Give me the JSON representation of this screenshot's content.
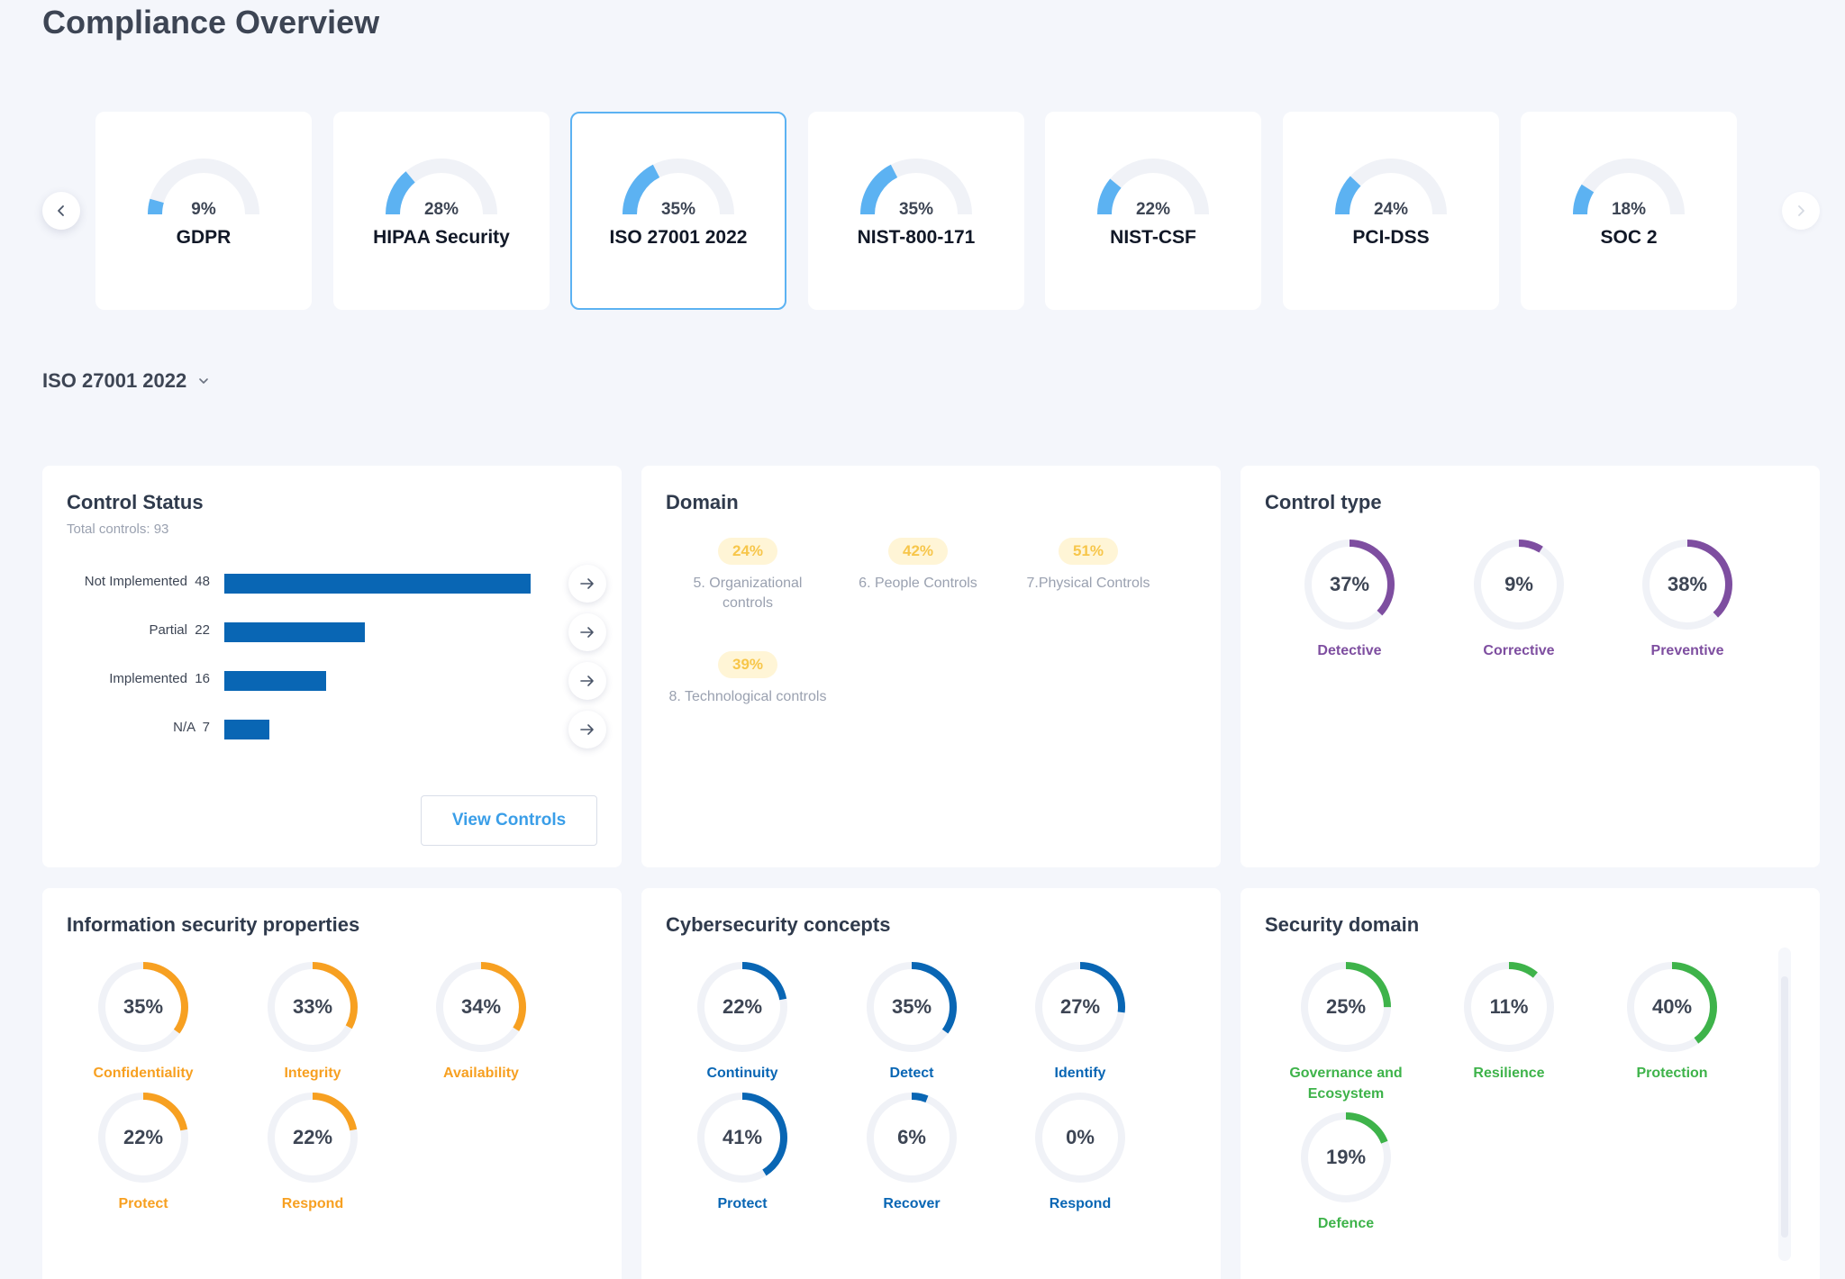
{
  "page": {
    "title": "Compliance Overview"
  },
  "frameworks": [
    {
      "name": "GDPR",
      "percent": 9,
      "percent_label": "9%"
    },
    {
      "name": "HIPAA Security",
      "percent": 28,
      "percent_label": "28%"
    },
    {
      "name": "ISO 27001 2022",
      "percent": 35,
      "percent_label": "35%",
      "selected": true
    },
    {
      "name": "NIST-800-171",
      "percent": 35,
      "percent_label": "35%"
    },
    {
      "name": "NIST-CSF",
      "percent": 22,
      "percent_label": "22%"
    },
    {
      "name": "PCI-DSS",
      "percent": 24,
      "percent_label": "24%"
    },
    {
      "name": "SOC 2",
      "percent": 18,
      "percent_label": "18%"
    }
  ],
  "carousel": {
    "prev_icon": "chevron-left-icon",
    "next_icon": "chevron-right-icon"
  },
  "selector": {
    "value": "ISO 27001 2022",
    "icon": "chevron-down-icon"
  },
  "control_status": {
    "title": "Control Status",
    "total": "Total controls: 93",
    "max_value": 48,
    "rows": [
      {
        "label": "Not Implemented  48",
        "value": 48
      },
      {
        "label": "Partial  22",
        "value": 22
      },
      {
        "label": "Implemented  16",
        "value": 16
      },
      {
        "label": "N/A  7",
        "value": 7
      }
    ],
    "button": "View Controls",
    "bar_color": "#0966b4"
  },
  "domain": {
    "title": "Domain",
    "items": [
      {
        "pill": "24%",
        "label": "5. Organizational controls"
      },
      {
        "pill": "42%",
        "label": "6. People Controls"
      },
      {
        "pill": "51%",
        "label": "7.Physical Controls"
      },
      {
        "pill": "39%",
        "label": "8. Technological controls"
      }
    ]
  },
  "control_type": {
    "title": "Control type",
    "color": "#7e4ea0",
    "items": [
      {
        "percent": 37,
        "value": "37%",
        "label": "Detective"
      },
      {
        "percent": 9,
        "value": "9%",
        "label": "Corrective"
      },
      {
        "percent": 38,
        "value": "38%",
        "label": "Preventive"
      }
    ]
  },
  "info_security": {
    "title": "Information security properties",
    "color": "#f7a021",
    "items": [
      {
        "percent": 35,
        "value": "35%",
        "label": "Confidentiality"
      },
      {
        "percent": 33,
        "value": "33%",
        "label": "Integrity"
      },
      {
        "percent": 34,
        "value": "34%",
        "label": "Availability"
      },
      {
        "percent": 22,
        "value": "22%",
        "label": "Protect"
      },
      {
        "percent": 22,
        "value": "22%",
        "label": "Respond"
      }
    ]
  },
  "cyber_concepts": {
    "title": "Cybersecurity concepts",
    "color": "#0966b4",
    "items": [
      {
        "percent": 22,
        "value": "22%",
        "label": "Continuity"
      },
      {
        "percent": 35,
        "value": "35%",
        "label": "Detect"
      },
      {
        "percent": 27,
        "value": "27%",
        "label": "Identify"
      },
      {
        "percent": 41,
        "value": "41%",
        "label": "Protect"
      },
      {
        "percent": 6,
        "value": "6%",
        "label": "Recover"
      },
      {
        "percent": 0,
        "value": "0%",
        "label": "Respond"
      }
    ]
  },
  "security_domain": {
    "title": "Security domain",
    "color": "#3eb34a",
    "items": [
      {
        "percent": 25,
        "value": "25%",
        "label": "Governance and Ecosystem"
      },
      {
        "percent": 11,
        "value": "11%",
        "label": "Resilience"
      },
      {
        "percent": 40,
        "value": "40%",
        "label": "Protection"
      },
      {
        "percent": 19,
        "value": "19%",
        "label": "Defence"
      }
    ]
  },
  "colors": {
    "gauge_fill": "#5cb2f2",
    "track": "#f0f2f7",
    "accent": "#3a9ee8"
  }
}
